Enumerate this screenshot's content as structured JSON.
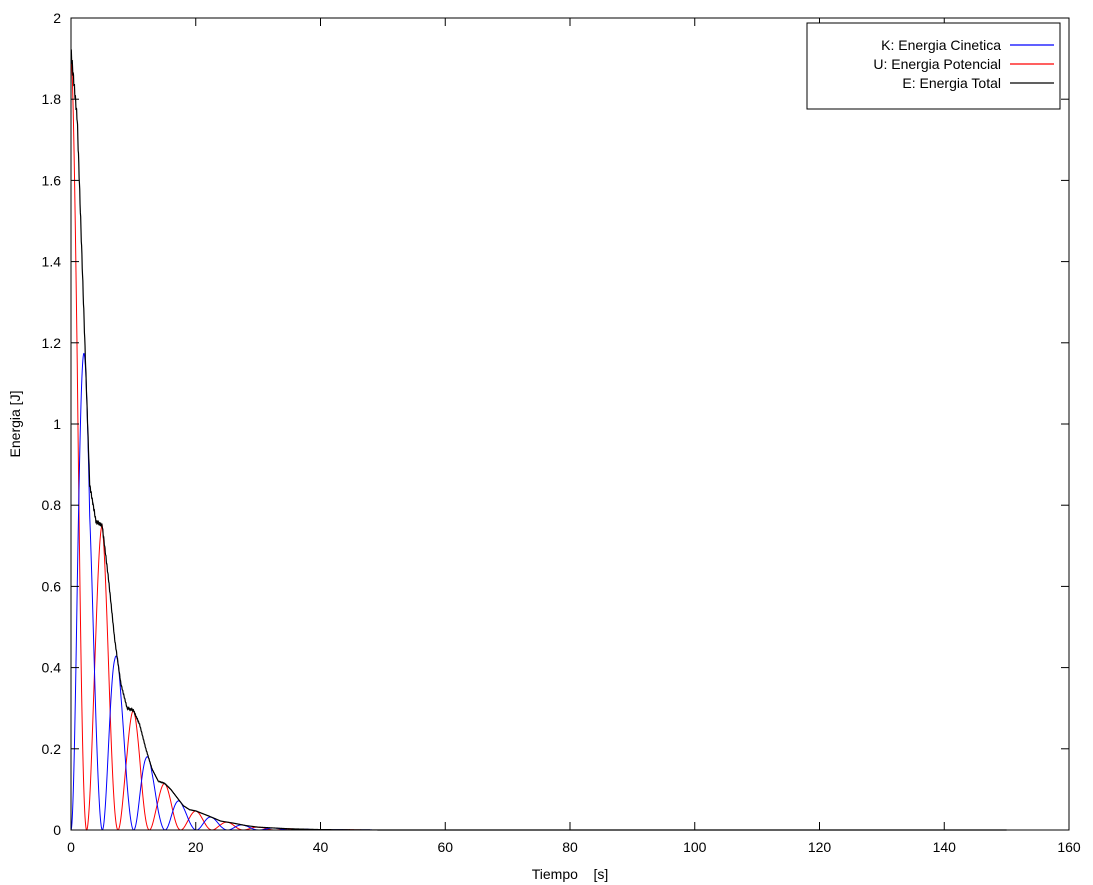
{
  "chart_data": {
    "type": "line",
    "title": "",
    "xlabel": "Tiempo    [s]",
    "ylabel": "Energia [J]",
    "xlim": [
      0,
      160
    ],
    "ylim": [
      0,
      2
    ],
    "xticks": [
      0,
      20,
      40,
      60,
      80,
      100,
      120,
      140,
      160
    ],
    "yticks": [
      0,
      0.2,
      0.4,
      0.6,
      0.8,
      1,
      1.2,
      1.4,
      1.6,
      1.8,
      2
    ],
    "grid": false,
    "legend_position": "top-right",
    "t_end": 150,
    "series": [
      {
        "name": "K: Energia Cinetica",
        "color": "#0000ff",
        "description": "kinetic energy, oscillating between 0 and the decaying envelope",
        "peaks": [
          [
            2.2,
            1.07
          ],
          [
            7.2,
            0.44
          ],
          [
            12.3,
            0.17
          ],
          [
            17.3,
            0.07
          ],
          [
            22.4,
            0.029
          ],
          [
            27.4,
            0.012
          ]
        ]
      },
      {
        "name": "U: Energia Potencial",
        "color": "#ff0000",
        "description": "potential energy, oscillating between 0 and the decaying envelope",
        "peaks": [
          [
            0.0,
            1.9
          ],
          [
            4.9,
            0.76
          ],
          [
            10.0,
            0.3
          ],
          [
            15.0,
            0.12
          ],
          [
            20.0,
            0.048
          ],
          [
            25.1,
            0.02
          ]
        ]
      },
      {
        "name": "E: Energia Total",
        "color": "#000000",
        "description": "total energy K+U, stepwise exponential decay",
        "points": [
          [
            0,
            1.92
          ],
          [
            1,
            1.75
          ],
          [
            2,
            1.3
          ],
          [
            3,
            0.85
          ],
          [
            4,
            0.76
          ],
          [
            5,
            0.75
          ],
          [
            6,
            0.62
          ],
          [
            7,
            0.47
          ],
          [
            8,
            0.36
          ],
          [
            9,
            0.3
          ],
          [
            10,
            0.295
          ],
          [
            11,
            0.26
          ],
          [
            12,
            0.2
          ],
          [
            13,
            0.15
          ],
          [
            14,
            0.12
          ],
          [
            15,
            0.115
          ],
          [
            16,
            0.1
          ],
          [
            17,
            0.08
          ],
          [
            18,
            0.06
          ],
          [
            19,
            0.05
          ],
          [
            20,
            0.047
          ],
          [
            22,
            0.035
          ],
          [
            24,
            0.022
          ],
          [
            26,
            0.017
          ],
          [
            28,
            0.011
          ],
          [
            30,
            0.007
          ],
          [
            35,
            0.003
          ],
          [
            40,
            0.001
          ],
          [
            50,
            0.0
          ],
          [
            150,
            0.0
          ]
        ]
      }
    ]
  }
}
